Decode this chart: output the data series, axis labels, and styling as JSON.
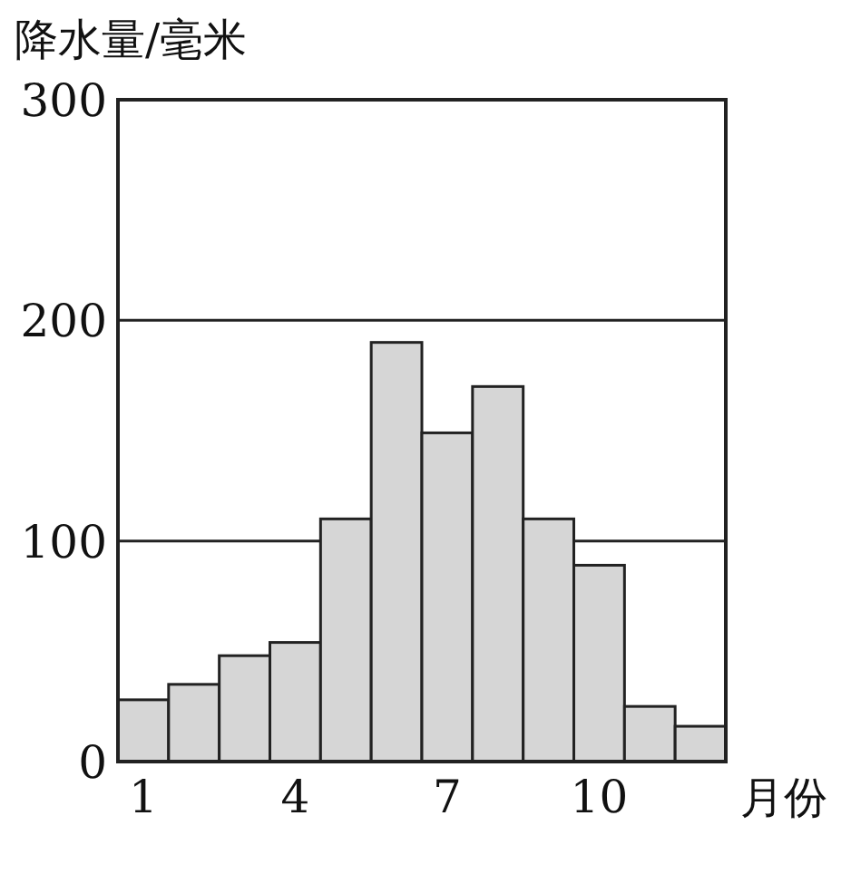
{
  "chart_data": {
    "type": "bar",
    "ylabel": "降水量/毫米",
    "xlabel": "月份",
    "categories": [
      "1",
      null,
      null,
      "4",
      null,
      null,
      "7",
      null,
      null,
      "10",
      null,
      null
    ],
    "values": [
      28,
      35,
      48,
      54,
      110,
      190,
      149,
      170,
      110,
      89,
      25,
      16
    ],
    "color": "#d6d6d6",
    "ylim": [
      0,
      300
    ],
    "yticks": [
      0,
      100,
      200,
      300
    ],
    "grid": "y"
  }
}
